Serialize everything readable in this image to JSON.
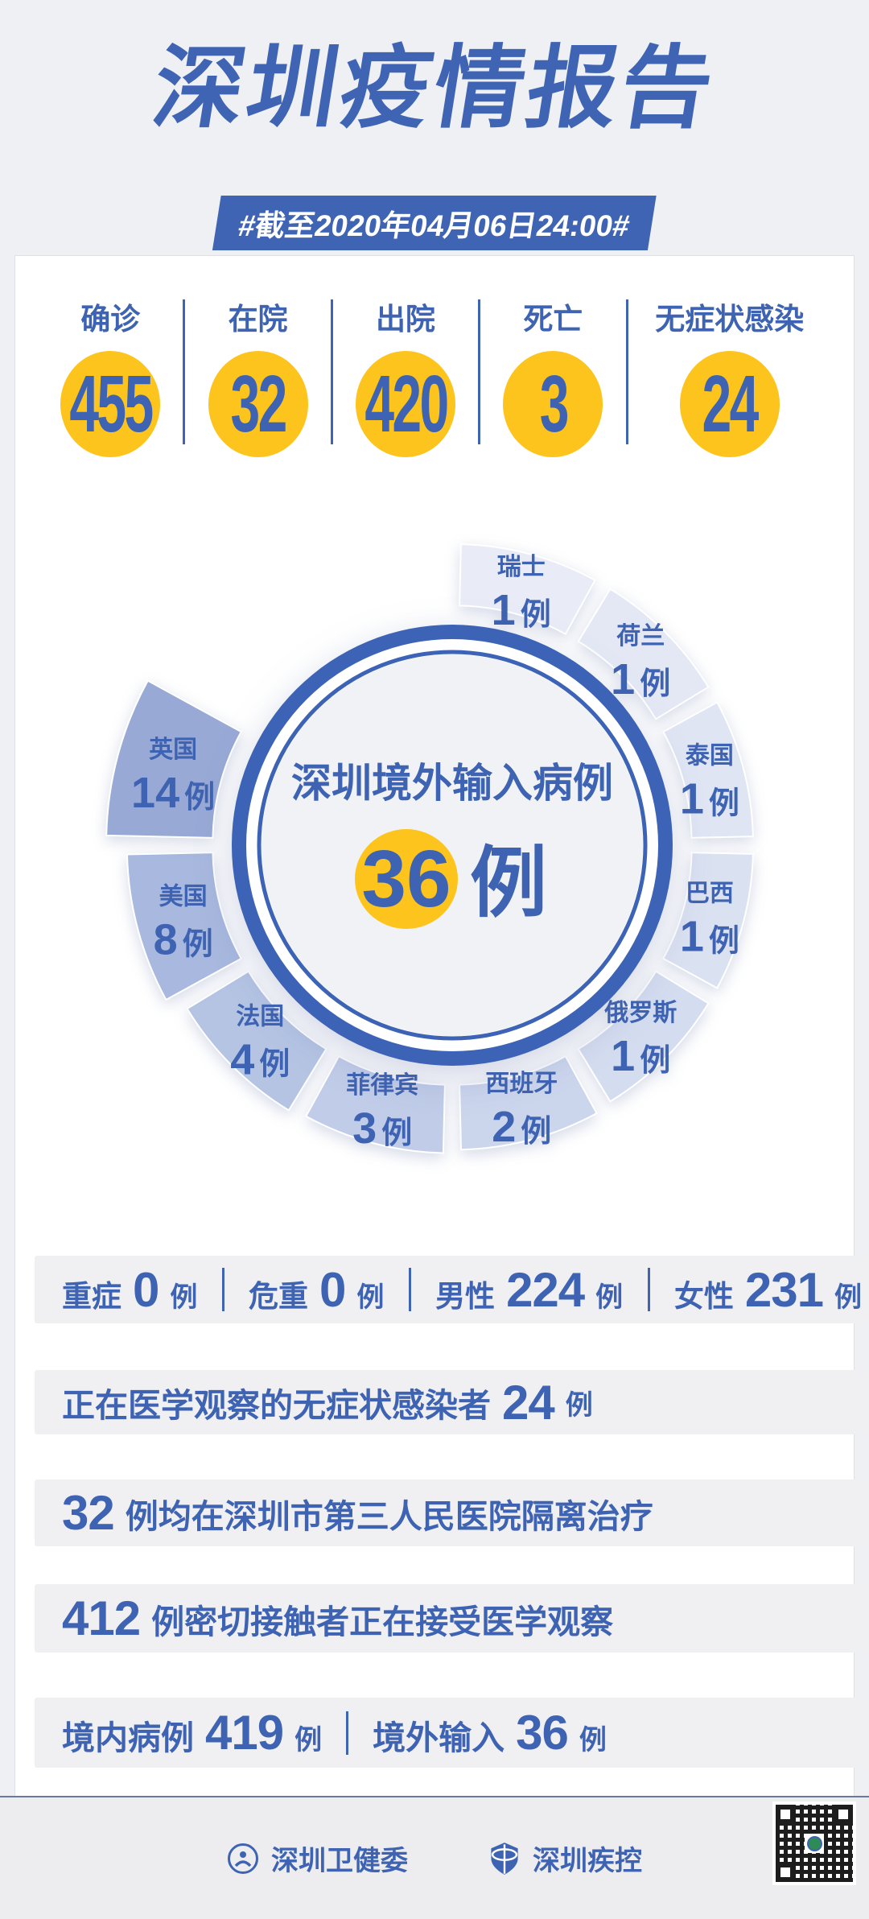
{
  "page": {
    "title": "深圳疫情报告",
    "subtitle": "#截至2020年04月06日24:00#"
  },
  "summary": {
    "items": [
      {
        "label": "确诊",
        "value": "455"
      },
      {
        "label": "在院",
        "value": "32"
      },
      {
        "label": "出院",
        "value": "420"
      },
      {
        "label": "死亡",
        "value": "3"
      },
      {
        "label": "无症状感染",
        "value": "24"
      }
    ]
  },
  "chart_data": {
    "type": "pie",
    "title": "深圳境外输入病例",
    "total_value": "36",
    "unit": "例",
    "categories": [
      "瑞士",
      "荷兰",
      "泰国",
      "巴西",
      "俄罗斯",
      "西班牙",
      "菲律宾",
      "法国",
      "美国",
      "英国"
    ],
    "values": [
      1,
      1,
      1,
      1,
      1,
      2,
      3,
      4,
      8,
      14
    ],
    "colors": [
      "#e9ecf7",
      "#e4e8f5",
      "#dfe5f3",
      "#dae1f1",
      "#d4dcef",
      "#cbd5ec",
      "#c0cce8",
      "#b5c4e3",
      "#a8b8de",
      "#98a9d6"
    ],
    "legend_position": "on-slice",
    "layout": {
      "equal_angle_slices": true,
      "start_deg": 0,
      "slice_deg": 30,
      "gap_deg": 1.3,
      "center": [
        470,
        470
      ],
      "inner_r": 288,
      "r_base": 360,
      "r_per_case": 4.3,
      "explode": 10,
      "ring_outer_r": 274,
      "ring_inner_r": 256,
      "thin_ring_r": 240,
      "inner_fill_r": 237,
      "ring_color": "#3c63b5",
      "inner_fill": "#f1f2f5",
      "accent_circle_color": "#fcc41c",
      "label_color": "#3e63b2"
    }
  },
  "details": {
    "row1": [
      {
        "label": "重症",
        "value": "0",
        "unit": "例"
      },
      {
        "label": "危重",
        "value": "0",
        "unit": "例"
      },
      {
        "label": "男性",
        "value": "224",
        "unit": "例"
      },
      {
        "label": "女性",
        "value": "231",
        "unit": "例"
      }
    ],
    "row2": {
      "text": "正在医学观察的无症状感染者",
      "value": "24",
      "unit": "例"
    },
    "row3": {
      "value": "32",
      "text": "例均在深圳市第三人民医院隔离治疗"
    },
    "row4": {
      "value": "412",
      "text": "例密切接触者正在接受医学观察"
    },
    "row5": [
      {
        "label": "境内病例",
        "value": "419",
        "unit": "例"
      },
      {
        "label": "境外输入",
        "value": "36",
        "unit": "例"
      }
    ]
  },
  "footer": {
    "org1": "深圳卫健委",
    "org2": "深圳疾控"
  },
  "colors": {
    "accent_blue": "#3e63b2",
    "accent_yellow": "#fcc41c",
    "page_bg": "#eef0f3",
    "card_bg": "#ffffff",
    "strip_bg": "#f0f0f2",
    "footer_bg": "#ededef"
  }
}
